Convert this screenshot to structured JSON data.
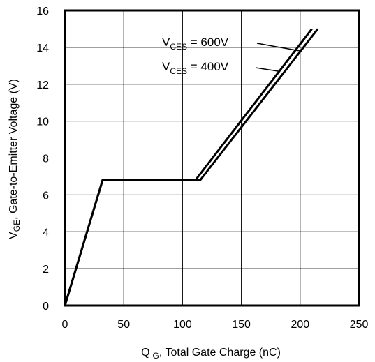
{
  "chart_data": {
    "type": "line",
    "xlabel": {
      "symbol": "Q",
      "subscript": "G",
      "text": ", Total Gate Charge (nC)"
    },
    "ylabel": {
      "symbol": "V",
      "subscript": "GE",
      "text": ", Gate-to-Emitter Voltage (V)"
    },
    "xlim": [
      0,
      250
    ],
    "ylim": [
      0,
      16
    ],
    "x_ticks": [
      "0",
      "50",
      "100",
      "150",
      "200",
      "250"
    ],
    "y_ticks": [
      "0",
      "2",
      "4",
      "6",
      "8",
      "10",
      "12",
      "14",
      "16"
    ],
    "grid": true,
    "series": [
      {
        "name": "V CES = 600V",
        "label_symbol": "V",
        "label_subscript": "CES",
        "label_value": " = 600V",
        "color": "#000000",
        "points": [
          [
            0,
            0
          ],
          [
            32,
            6.8
          ],
          [
            115,
            6.8
          ],
          [
            215,
            15.0
          ]
        ]
      },
      {
        "name": "V CES = 400V",
        "label_symbol": "V",
        "label_subscript": "CES",
        "label_value": " = 400V",
        "color": "#000000",
        "points": [
          [
            0,
            0
          ],
          [
            32,
            6.8
          ],
          [
            111,
            6.8
          ],
          [
            210,
            15.0
          ]
        ]
      }
    ]
  }
}
